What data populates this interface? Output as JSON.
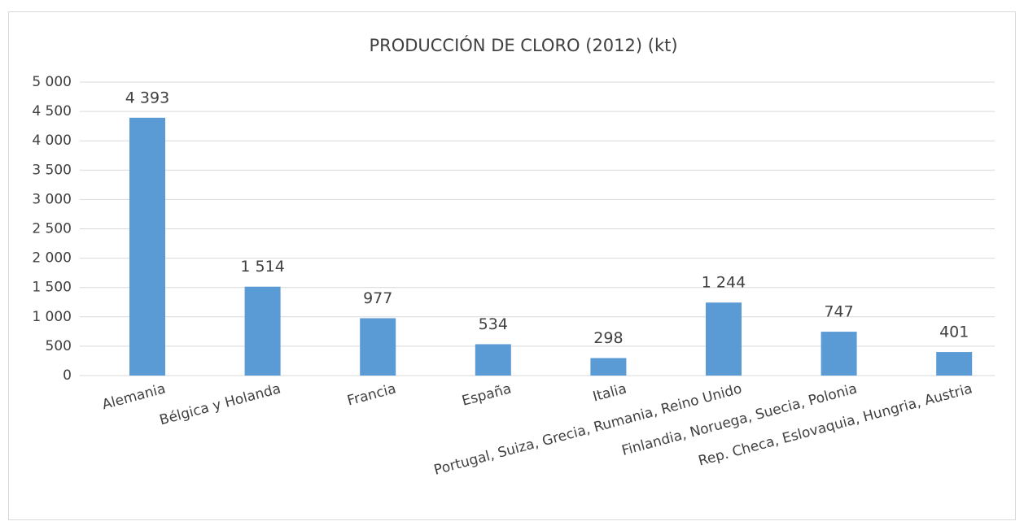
{
  "chart_data": {
    "type": "bar",
    "title": "PRODUCCIÓN DE CLORO (2012) (kt)",
    "categories": [
      "Alemania",
      "Bélgica y Holanda",
      "Francia",
      "España",
      "Italia",
      "Portugal, Suiza, Grecia, Rumania, Reino Unido",
      "Finlandia, Noruega, Suecia, Polonia",
      "Rep. Checa, Eslovaquia, Hungria, Austria"
    ],
    "values": [
      4393,
      1514,
      977,
      534,
      298,
      1244,
      747,
      401
    ],
    "value_labels": [
      "4 393",
      "1 514",
      "977",
      "534",
      "298",
      "1 244",
      "747",
      "401"
    ],
    "color": "#5b9bd5",
    "ylim": [
      0,
      5000
    ],
    "yticks": [
      0,
      500,
      {
        "value": 1000,
        "label": "1 000"
      },
      {
        "value": 1500,
        "label": "1 500"
      },
      {
        "value": 2000,
        "label": "2 000"
      },
      {
        "value": 2500,
        "label": "2 500"
      },
      {
        "value": 3000,
        "label": "3 000"
      },
      {
        "value": 3500,
        "label": "3 500"
      },
      {
        "value": 4000,
        "label": "4 000"
      },
      {
        "value": 4500,
        "label": "4 500"
      },
      {
        "value": 5000,
        "label": "5 000"
      }
    ],
    "grid": true
  }
}
